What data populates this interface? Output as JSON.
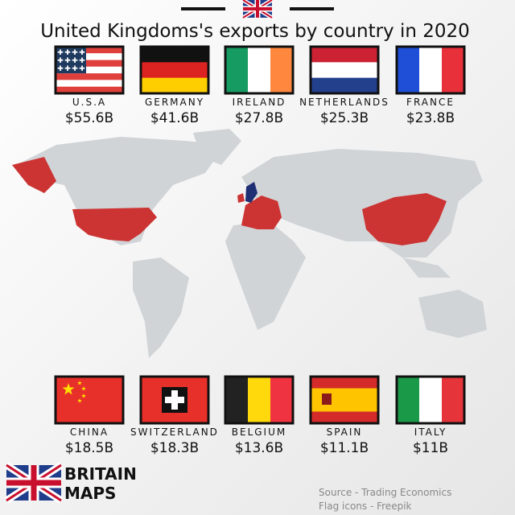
{
  "header": {
    "title": "United Kingdoms's exports by country in 2020"
  },
  "countries": [
    {
      "name": "U.S.A",
      "value": "$55.6B"
    },
    {
      "name": "GERMANY",
      "value": "$41.6B"
    },
    {
      "name": "IRELAND",
      "value": "$27.8B"
    },
    {
      "name": "NETHERLANDS",
      "value": "$25.3B"
    },
    {
      "name": "FRANCE",
      "value": "$23.8B"
    },
    {
      "name": "CHINA",
      "value": "$18.5B"
    },
    {
      "name": "SWITZERLAND",
      "value": "$18.3B"
    },
    {
      "name": "BELGIUM",
      "value": "$13.6B"
    },
    {
      "name": "SPAIN",
      "value": "$11.1B"
    },
    {
      "name": "ITALY",
      "value": "$11B"
    }
  ],
  "logo": {
    "line1": "BRITAIN",
    "line2": "MAPS"
  },
  "source": [
    "Source - Trading Economics",
    "Flag icons - Freepik"
  ]
}
